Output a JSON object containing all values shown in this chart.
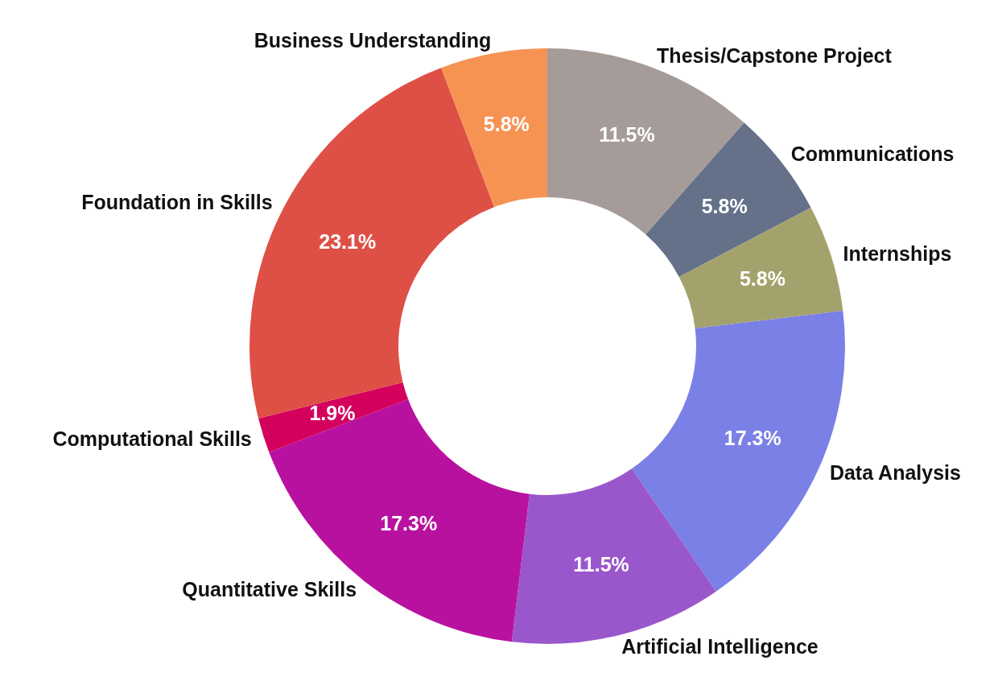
{
  "chart_data": {
    "type": "donut",
    "categories": [
      "Thesis/Capstone Project",
      "Communications",
      "Internships",
      "Data Analysis",
      "Artificial Intelligence",
      "Quantitative Skills",
      "Computational Skills",
      "Foundation in Skills",
      "Business Understanding"
    ],
    "values": [
      11.5,
      5.8,
      5.8,
      17.3,
      11.5,
      17.3,
      1.9,
      23.1,
      5.8
    ],
    "colors": [
      "#a59c99",
      "#647189",
      "#a4a26c",
      "#7b80e6",
      "#9a57cb",
      "#b9119f",
      "#d3005e",
      "#de5046",
      "#f69352"
    ],
    "value_labels": [
      "11.5%",
      "5.8%",
      "5.8%",
      "17.3%",
      "11.5%",
      "17.3%",
      "1.9%",
      "23.1%",
      "5.8%"
    ]
  }
}
